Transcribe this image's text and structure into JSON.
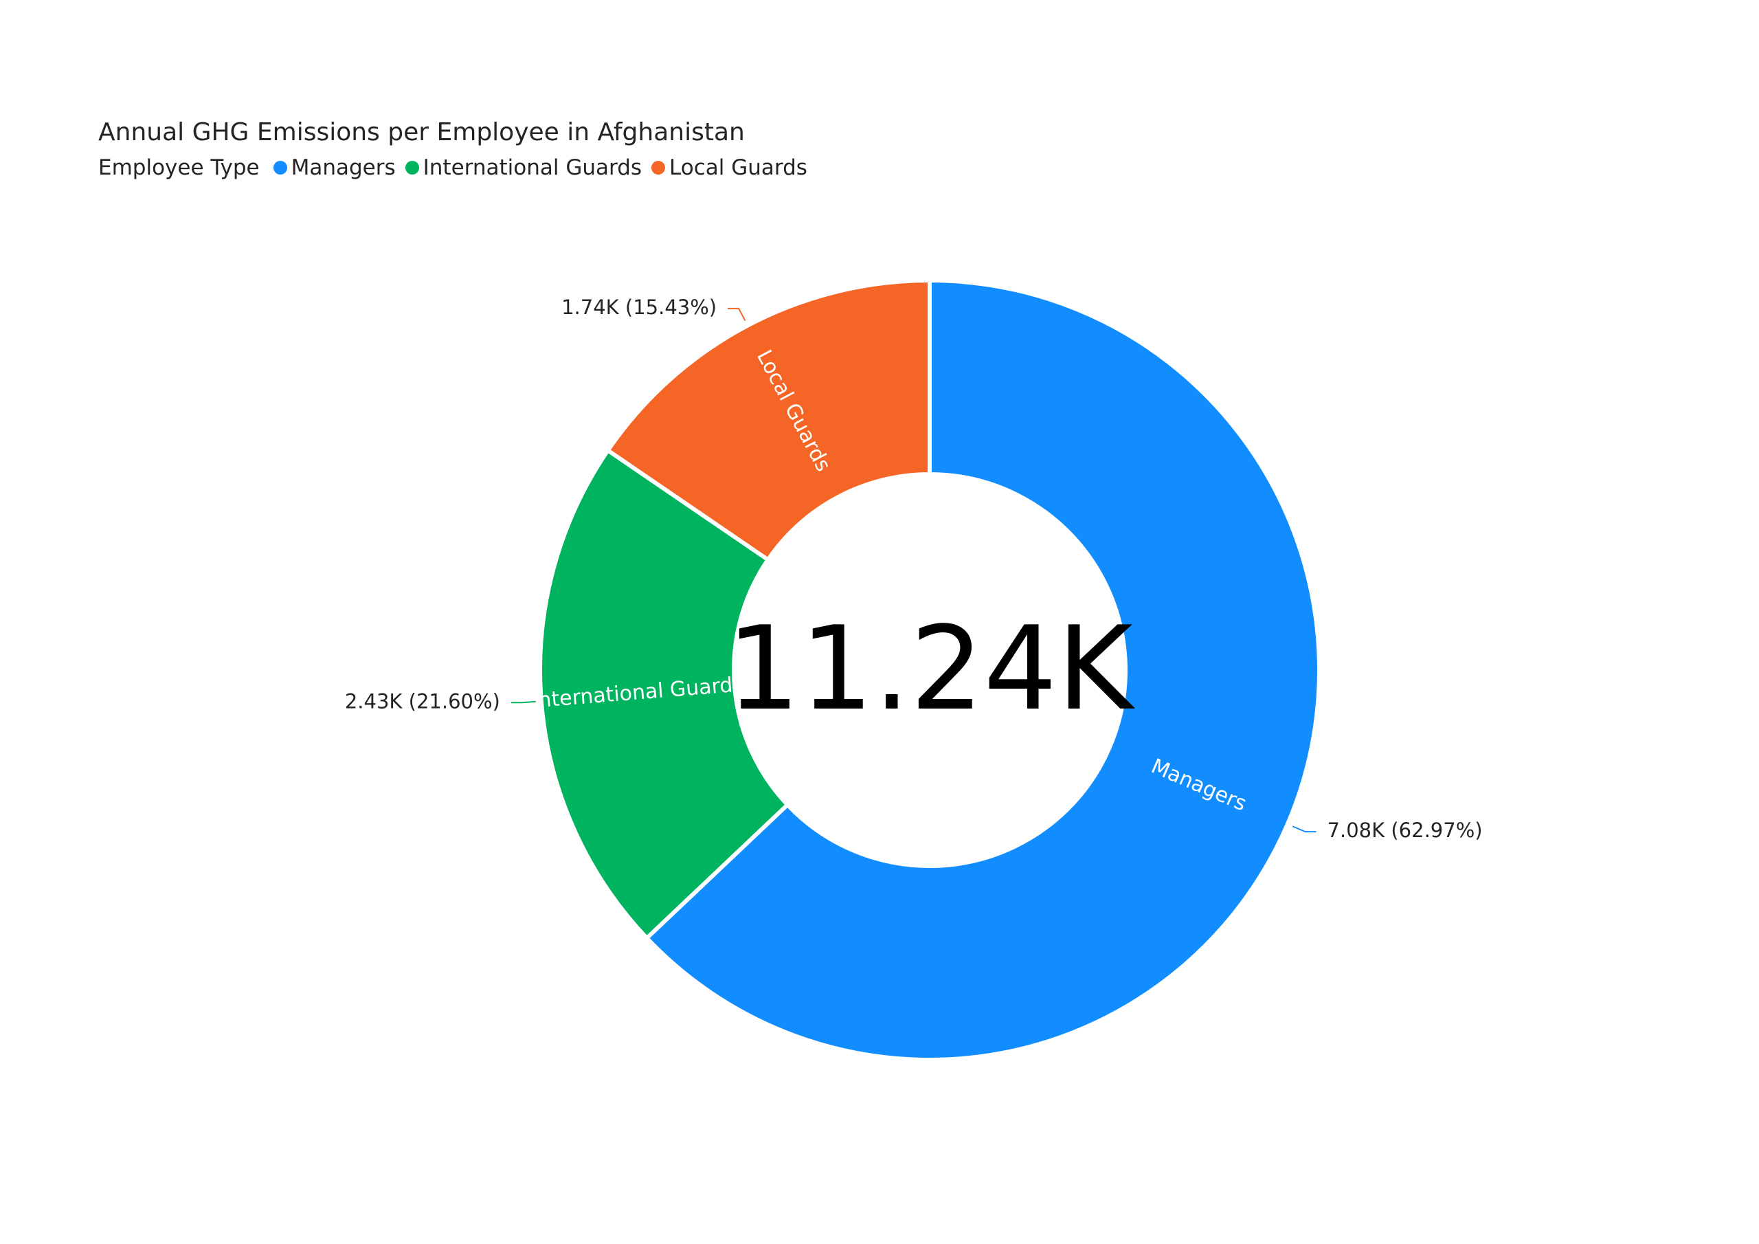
{
  "chart_data": {
    "type": "pie",
    "variant": "donut",
    "title": "Annual GHG Emissions per Employee in Afghanistan",
    "legend_title": "Employee Type",
    "legend_position": "top-left",
    "center_label": "11.24K",
    "total": 11.24,
    "categories": [
      "Managers",
      "International Guards",
      "Local Guards"
    ],
    "values": [
      7.08,
      2.43,
      1.74
    ],
    "percents": [
      62.97,
      21.6,
      15.43
    ],
    "data_labels": [
      "7.08K (62.97%)",
      "2.43K (21.60%)",
      "1.74K (15.43%)"
    ],
    "colors": [
      "#118DFF",
      "#00B35F",
      "#F56525"
    ]
  }
}
